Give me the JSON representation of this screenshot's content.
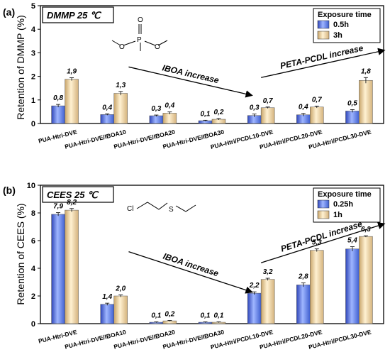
{
  "colors": {
    "blue_bar": "#6f8fe0",
    "tan_bar": "#e9cf9c",
    "frame": "#000000"
  },
  "chart_data": [
    {
      "type": "bar",
      "panel_label": "(a)",
      "title": "DMMP 25 ℃",
      "ylabel": "Retention of DMMP (%)",
      "ylim": [
        0,
        5
      ],
      "yticks": [
        0,
        1,
        2,
        3,
        4,
        5
      ],
      "legend_title": "Exposure time",
      "legend_position": "top-right",
      "molecule_labels": [
        "O",
        "P",
        "O",
        "O"
      ],
      "categories": [
        "PUA-Htri-DVE",
        "PUA-Htri-DVE/IBOA10",
        "PUA-Htri-DVE/IBOA20",
        "PUA-Htri-DVE/IBOA30",
        "PUA-Htri/PCDL10-DVE",
        "PUA-Htri/PCDL20-DVE",
        "PUA-Htri/PCDL30-DVE"
      ],
      "series": [
        {
          "name": "0.5h",
          "values": [
            0.75,
            0.38,
            0.33,
            0.12,
            0.34,
            0.37,
            0.53
          ],
          "labels": [
            "0,8",
            "0,4",
            "0,3",
            "0,1",
            "0,3",
            "0,4",
            "0,5"
          ]
        },
        {
          "name": "3h",
          "values": [
            1.88,
            1.28,
            0.44,
            0.18,
            0.67,
            0.7,
            1.83
          ],
          "labels": [
            "1,9",
            "1,3",
            "0,4",
            "0,2",
            "0,7",
            "0,7",
            "1,8"
          ]
        }
      ],
      "errors": [
        [
          0.06,
          0.03,
          0.03,
          0.02,
          0.06,
          0.06,
          0.06
        ],
        [
          0.06,
          0.08,
          0.05,
          0.03,
          0.03,
          0.04,
          0.12
        ]
      ],
      "annotations": [
        {
          "text": "IBOA increase",
          "arrow_from": [
            1.3,
            2.4
          ],
          "arrow_to": [
            3.8,
            1.2
          ]
        },
        {
          "text": "PETA-PCDL increase",
          "arrow_from": [
            4.0,
            1.95
          ],
          "arrow_to": [
            6.5,
            3.1
          ]
        }
      ]
    },
    {
      "type": "bar",
      "panel_label": "(b)",
      "title": "CEES 25 ℃",
      "ylabel": "Retention of CEES (%)",
      "ylim": [
        0,
        10
      ],
      "yticks": [
        0,
        2,
        4,
        6,
        8,
        10
      ],
      "legend_title": "Exposure time",
      "legend_position": "top-right",
      "molecule_labels": [
        "Cl",
        "S"
      ],
      "categories": [
        "PUA-Htri-DVE",
        "PUA-Htri-DVE/IBOA10",
        "PUA-Htri-DVE/IBOA20",
        "PUA-Htri-DVE/IBOA30",
        "PUA-Htri/PCDL10-DVE",
        "PUA-Htri/PCDL20-DVE",
        "PUA-Htri/PCDL30-DVE"
      ],
      "series": [
        {
          "name": "0.25h",
          "values": [
            7.9,
            1.4,
            0.1,
            0.1,
            2.2,
            2.8,
            5.4
          ],
          "labels": [
            "7,9",
            "1,4",
            "0,1",
            "0,1",
            "2,2",
            "2,8",
            "5,4"
          ]
        },
        {
          "name": "1h",
          "values": [
            8.2,
            2.0,
            0.2,
            0.1,
            3.2,
            5.3,
            6.3
          ],
          "labels": [
            "8,2",
            "2,0",
            "0,2",
            "0,1",
            "3,2",
            "5,3",
            "6,3"
          ]
        }
      ],
      "errors": [
        [
          0.12,
          0.08,
          0.03,
          0.03,
          0.1,
          0.14,
          0.16
        ],
        [
          0.12,
          0.08,
          0.03,
          0.03,
          0.08,
          0.1,
          0.05
        ]
      ],
      "annotations": [
        {
          "text": "IBOA increase",
          "arrow_from": [
            1.3,
            5.2
          ],
          "arrow_to": [
            3.8,
            2.3
          ]
        },
        {
          "text": "PETA-PCDL increase",
          "arrow_from": [
            4.0,
            4.4
          ],
          "arrow_to": [
            6.5,
            7.2
          ]
        }
      ]
    }
  ]
}
